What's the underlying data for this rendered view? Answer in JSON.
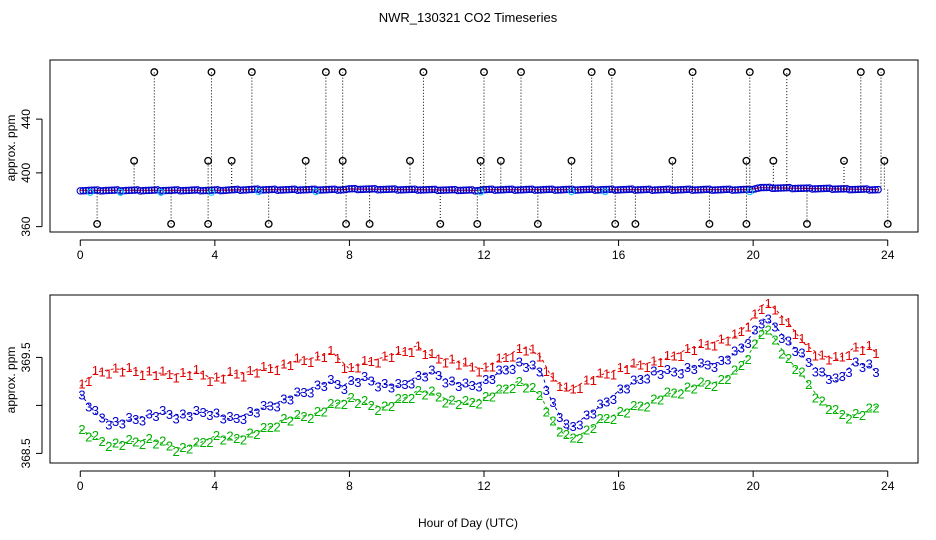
{
  "figure": {
    "title": "NWR_130321  CO2 Timeseries",
    "xlabel": "Hour of Day (UTC)"
  },
  "chart_data": [
    {
      "type": "scatter",
      "panel": "top",
      "title": "NWR_130321  CO2 Timeseries",
      "ylabel": "approx. ppm",
      "xlim": [
        -0.9,
        24.9
      ],
      "ylim": [
        356,
        484
      ],
      "x_ticks": [
        0,
        4,
        8,
        12,
        16,
        20,
        24
      ],
      "y_ticks": [
        360,
        400,
        440
      ],
      "baseline": {
        "x": [
          0.0,
          4.0,
          5.0,
          7.8,
          8.0,
          11.8,
          12.0,
          19.9,
          20.2,
          23.8
        ],
        "values": [
          387,
          387,
          387.5,
          387.5,
          388,
          387,
          387.5,
          387.5,
          389,
          387.5
        ],
        "series_colors": [
          "#e00000",
          "#00c8ff",
          "#0000cc"
        ]
      },
      "high_spikes_x": [
        2.2,
        3.9,
        5.1,
        7.3,
        7.8,
        10.2,
        12.0,
        13.1,
        15.2,
        15.8,
        18.2,
        19.9,
        21.0,
        23.2,
        23.8
      ],
      "high_spikes_y": 475,
      "mid_spikes_x": [
        1.6,
        3.8,
        4.5,
        6.7,
        7.8,
        9.8,
        11.9,
        12.5,
        14.6,
        17.6,
        19.8,
        20.6,
        22.7,
        23.9
      ],
      "mid_spikes_y": 409,
      "low_spikes_x": [
        0.5,
        2.7,
        3.8,
        5.6,
        7.9,
        8.6,
        10.7,
        11.8,
        13.6,
        15.9,
        16.5,
        18.7,
        19.8,
        21.6,
        24.0
      ],
      "low_spikes_y": 362,
      "outlier_marker_color": "#000000"
    },
    {
      "type": "line",
      "panel": "bottom",
      "ylabel": "approx. ppm",
      "xlim": [
        -0.9,
        24.9
      ],
      "ylim": [
        368.4,
        370.15
      ],
      "x_ticks": [
        0,
        4,
        8,
        12,
        16,
        20,
        24
      ],
      "y_ticks": [
        368.5,
        369.0,
        369.5
      ],
      "y_tick_labels": [
        "368.5",
        "",
        "369.5"
      ],
      "x": [
        0.0,
        0.5,
        1.0,
        1.5,
        2.0,
        2.5,
        3.0,
        3.5,
        3.8,
        4.0,
        4.5,
        5.0,
        5.5,
        6.0,
        6.5,
        7.0,
        7.5,
        7.8,
        8.0,
        8.5,
        9.0,
        9.5,
        10.0,
        10.5,
        11.0,
        11.5,
        12.0,
        12.5,
        13.0,
        13.3,
        13.7,
        14.0,
        14.5,
        15.0,
        15.5,
        16.0,
        16.5,
        17.0,
        17.5,
        18.0,
        18.5,
        19.0,
        19.5,
        20.0,
        20.3,
        20.6,
        21.0,
        21.5,
        22.0,
        22.5,
        23.0,
        23.5,
        23.8
      ],
      "series": [
        {
          "name": "1",
          "color": "#e00000",
          "values": [
            369.2,
            369.35,
            369.38,
            369.37,
            369.35,
            369.33,
            369.33,
            369.35,
            369.3,
            369.28,
            369.33,
            369.35,
            369.38,
            369.42,
            369.47,
            369.5,
            369.55,
            369.45,
            369.38,
            369.45,
            369.5,
            369.55,
            369.62,
            369.5,
            369.48,
            369.42,
            369.38,
            369.48,
            369.58,
            369.6,
            369.5,
            369.3,
            369.15,
            369.25,
            369.32,
            369.38,
            369.42,
            369.45,
            369.5,
            369.58,
            369.62,
            369.68,
            369.72,
            369.92,
            370.05,
            370.02,
            369.88,
            369.65,
            369.52,
            369.48,
            369.6,
            369.6,
            369.5
          ]
        },
        {
          "name": "3",
          "color": "#0000cc",
          "values": [
            369.12,
            368.9,
            368.82,
            368.85,
            368.9,
            368.92,
            368.9,
            368.92,
            368.95,
            368.92,
            368.85,
            368.92,
            368.98,
            369.05,
            369.12,
            369.2,
            369.25,
            369.2,
            369.25,
            369.28,
            369.22,
            369.2,
            369.3,
            369.35,
            369.25,
            369.2,
            369.25,
            369.35,
            369.45,
            369.42,
            369.35,
            369.05,
            368.75,
            368.88,
            369.0,
            369.15,
            369.25,
            369.35,
            369.35,
            369.38,
            369.42,
            369.45,
            369.55,
            369.75,
            369.9,
            369.85,
            369.68,
            369.5,
            369.35,
            369.25,
            369.45,
            369.4,
            369.3
          ]
        },
        {
          "name": "2",
          "color": "#00b000",
          "values": [
            368.75,
            368.65,
            368.6,
            368.62,
            368.65,
            368.6,
            368.55,
            368.6,
            368.65,
            368.68,
            368.65,
            368.7,
            368.75,
            368.85,
            368.88,
            368.92,
            369.0,
            369.05,
            369.08,
            369.02,
            368.98,
            369.05,
            369.15,
            369.12,
            369.05,
            369.02,
            369.08,
            369.15,
            369.25,
            369.2,
            369.1,
            368.85,
            368.65,
            368.72,
            368.85,
            368.92,
            368.98,
            369.05,
            369.12,
            369.18,
            369.22,
            369.25,
            369.35,
            369.6,
            369.8,
            369.72,
            369.5,
            369.3,
            369.05,
            368.92,
            368.9,
            368.95,
            369.02
          ]
        }
      ]
    }
  ]
}
